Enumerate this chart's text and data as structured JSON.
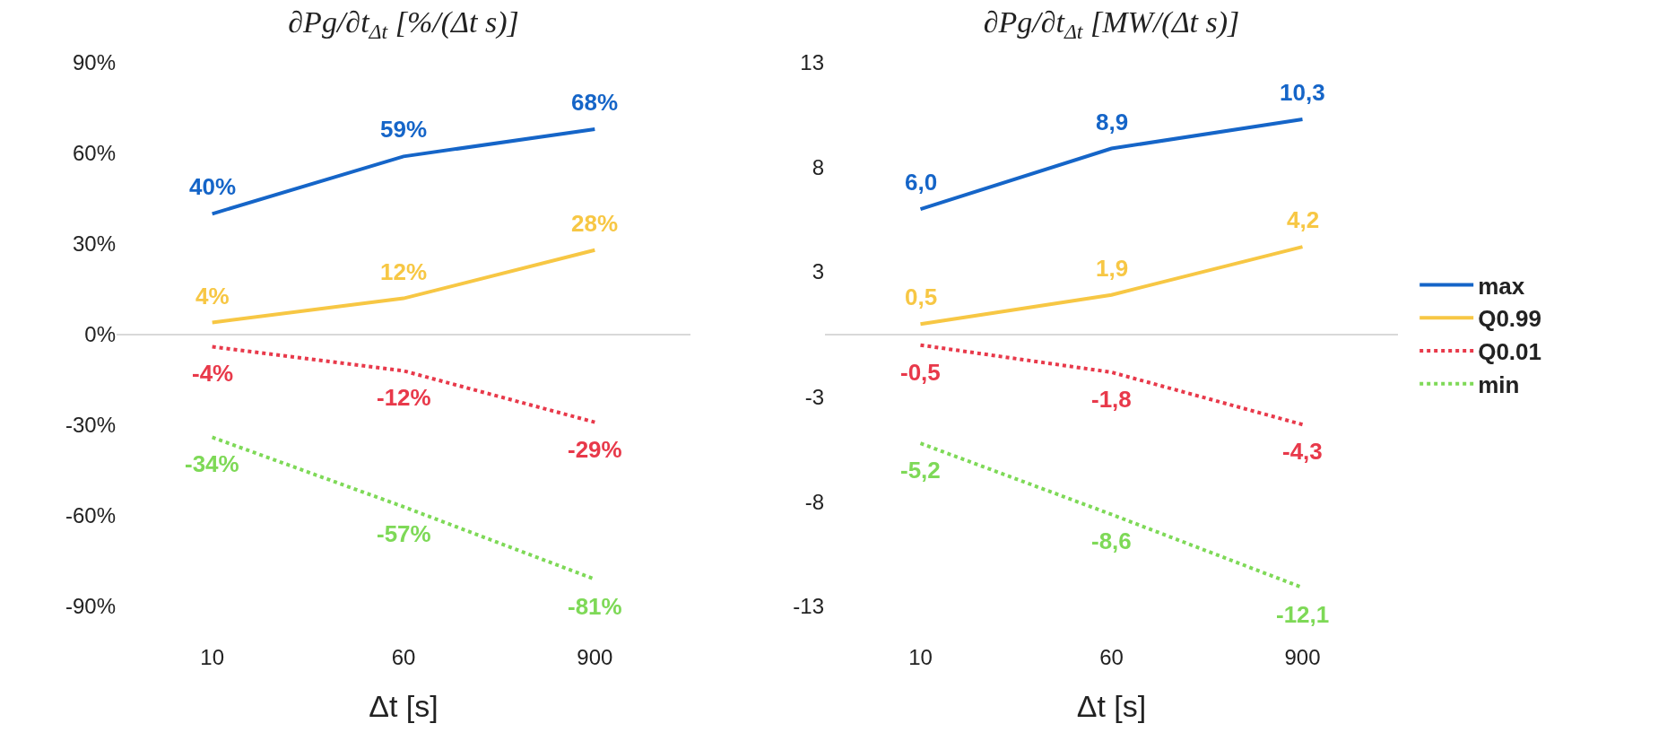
{
  "chart_data": [
    {
      "type": "line",
      "title": "∂Pg/∂t$_{Δt}$ [%/(Δt s)]",
      "xlabel": "Δt [s]",
      "categories": [
        "10",
        "60",
        "900"
      ],
      "ylim": [
        -90,
        90
      ],
      "yticks": [
        {
          "value": -90,
          "label": "-90%"
        },
        {
          "value": -60,
          "label": "-60%"
        },
        {
          "value": -30,
          "label": "-30%"
        },
        {
          "value": 0,
          "label": "0%"
        },
        {
          "value": 30,
          "label": "30%"
        },
        {
          "value": 60,
          "label": "60%"
        },
        {
          "value": 90,
          "label": "90%"
        }
      ],
      "grid": false,
      "legend": false,
      "marker": "none",
      "ref_lines": [
        {
          "axis": "y",
          "value": 0,
          "color": "#d9d9d9"
        }
      ],
      "series": [
        {
          "color": "#1565c8",
          "line_style": "solid",
          "values": [
            40,
            59,
            68
          ],
          "value_labels": [
            "40%",
            "59%",
            "68%"
          ]
        },
        {
          "color": "#f7c744",
          "line_style": "solid",
          "values": [
            4,
            12,
            28
          ],
          "value_labels": [
            "4%",
            "12%",
            "28%"
          ]
        },
        {
          "color": "#e8394a",
          "line_style": "dotted",
          "values": [
            -4,
            -12,
            -29
          ],
          "value_labels": [
            "-4%",
            "-12%",
            "-29%"
          ]
        },
        {
          "color": "#7ed957",
          "line_style": "dotted",
          "values": [
            -34,
            -57,
            -81
          ],
          "value_labels": [
            "-34%",
            "-57%",
            "-81%"
          ]
        }
      ]
    },
    {
      "type": "line",
      "title": "∂Pg/∂t$_{Δt}$ [MW/(Δt s)]",
      "xlabel": "Δt [s]",
      "categories": [
        "10",
        "60",
        "900"
      ],
      "ylim": [
        -13,
        13
      ],
      "yticks": [
        -13,
        -8,
        -3,
        3,
        8,
        13
      ],
      "grid": false,
      "legend": "right",
      "marker": "none",
      "ref_lines": [
        {
          "axis": "y",
          "value": 0,
          "color": "#d9d9d9"
        }
      ],
      "series": [
        {
          "name": "max",
          "color": "#1565c8",
          "line_style": "solid",
          "values": [
            6.0,
            8.9,
            10.3
          ],
          "value_labels": [
            "6,0",
            "8,9",
            "10,3"
          ]
        },
        {
          "name": "Q0.99",
          "color": "#f7c744",
          "line_style": "solid",
          "values": [
            0.5,
            1.9,
            4.2
          ],
          "value_labels": [
            "0,5",
            "1,9",
            "4,2"
          ]
        },
        {
          "name": "Q0.01",
          "color": "#e8394a",
          "line_style": "dotted",
          "values": [
            -0.5,
            -1.8,
            -4.3
          ],
          "value_labels": [
            "-0,5",
            "-1,8",
            "-4,3"
          ]
        },
        {
          "name": "min",
          "color": "#7ed957",
          "line_style": "dotted",
          "values": [
            -5.2,
            -8.6,
            -12.1
          ],
          "value_labels": [
            "-5,2",
            "-8,6",
            "-12,1"
          ]
        }
      ]
    }
  ]
}
